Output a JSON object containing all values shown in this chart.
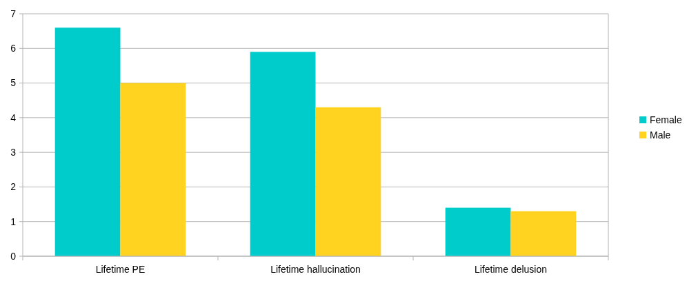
{
  "chart_data": {
    "type": "bar",
    "categories": [
      "Lifetime PE",
      "Lifetime hallucination",
      "Lifetime delusion"
    ],
    "series": [
      {
        "name": "Female",
        "color": "#00cccc",
        "values": [
          6.6,
          5.9,
          1.4
        ]
      },
      {
        "name": "Male",
        "color": "#ffd320",
        "values": [
          5.0,
          4.3,
          1.3
        ]
      }
    ],
    "ylim": [
      0,
      7
    ],
    "yticks": [
      0,
      1,
      2,
      3,
      4,
      5,
      6,
      7
    ],
    "grid": "y",
    "legend": "right"
  }
}
